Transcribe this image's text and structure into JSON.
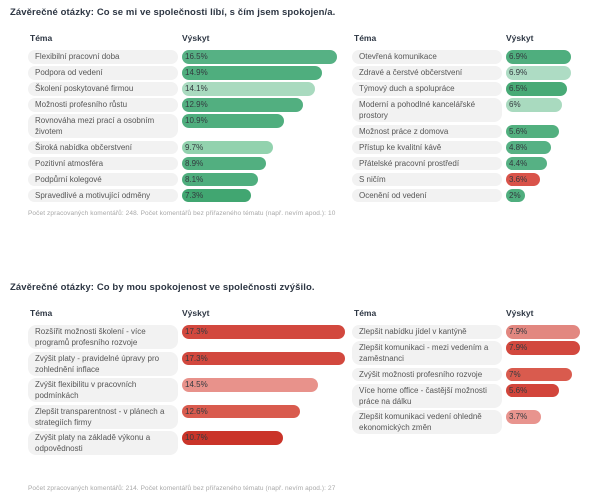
{
  "sections": [
    {
      "title": "Závěrečné otázky: Co se mi ve společnosti líbí, s čím jsem spokojen/a.",
      "footnote": "Počet zpracovaných komentářů: 248. Počet komentářů bez přiřazeného tématu (např. nevím apod.): 10"
    },
    {
      "title": "Závěrečné otázky: Co by mou spokojenost ve společnosti zvýšilo.",
      "footnote": "Počet zpracovaných komentářů: 214. Počet komentářů bez přiřazeného tématu (např. nevím apod.): 27"
    }
  ],
  "chart_data": [
    {
      "type": "bar",
      "orientation": "horizontal",
      "col_topic": "Téma",
      "col_value": "Výskyt",
      "categories": [
        "Flexibilní pracovní doba",
        "Podpora od vedení",
        "Školení poskytované firmou",
        "Možnosti profesního růstu",
        "Rovnováha mezi prací a osobním životem",
        "Široká nabídka občerstvení",
        "Pozitivní atmosféra",
        "Podpůrní kolegové",
        "Spravedlivé a motivující odměny"
      ],
      "values": [
        16.5,
        14.9,
        14.1,
        12.9,
        10.9,
        9.7,
        8.9,
        8.1,
        7.3
      ],
      "labels": [
        "16.5%",
        "14.9%",
        "14.1%",
        "12.9%",
        "10.9%",
        "9.7%",
        "8.9%",
        "8.1%",
        "7.3%"
      ],
      "colors": [
        "#56b184",
        "#4fae7e",
        "#a9dabf",
        "#52af80",
        "#4fae7e",
        "#92d2ae",
        "#52af80",
        "#4fae7e",
        "#41a671"
      ]
    },
    {
      "type": "bar",
      "orientation": "horizontal",
      "col_topic": "Téma",
      "col_value": "Výskyt",
      "categories": [
        "Otevřená komunikace",
        "Zdravé a čerstvé občerstvení",
        "Týmový duch a spolupráce",
        "Moderní a pohodlné kancelářské prostory",
        "Možnost práce z domova",
        "Přístup ke kvalitní kávě",
        "Přátelské pracovní prostředí",
        "S ničím",
        "Ocenění od vedení"
      ],
      "values": [
        6.9,
        6.9,
        6.5,
        6,
        5.6,
        4.8,
        4.4,
        3.6,
        2
      ],
      "labels": [
        "6.9%",
        "6.9%",
        "6.5%",
        "6%",
        "5.6%",
        "4.8%",
        "4.4%",
        "3.6%",
        "2%"
      ],
      "colors": [
        "#4fae7e",
        "#aedcc4",
        "#48aa76",
        "#a9dabf",
        "#52b07f",
        "#56b184",
        "#56b184",
        "#d9534a",
        "#4fae7e"
      ]
    },
    {
      "type": "bar",
      "orientation": "horizontal",
      "col_topic": "Téma",
      "col_value": "Výskyt",
      "categories": [
        "Rozšířit možnosti školení - více programů profesního rozvoje",
        "Zvýšit platy - pravidelné úpravy pro zohlednění inflace",
        "Zvýšit flexibilitu v pracovních podmínkách",
        "Zlepšit transparentnost - v plánech a strategiích firmy",
        "Zvýšit platy na základě výkonu a odpovědnosti"
      ],
      "values": [
        17.3,
        17.3,
        14.5,
        12.6,
        10.7
      ],
      "labels": [
        "17.3%",
        "17.3%",
        "14.5%",
        "12.6%",
        "10.7%"
      ],
      "colors": [
        "#d2483e",
        "#d2483e",
        "#e8928b",
        "#d95b4e",
        "#ca3429"
      ]
    },
    {
      "type": "bar",
      "orientation": "horizontal",
      "col_topic": "Téma",
      "col_value": "Výskyt",
      "categories": [
        "Zlepšit nabídku jídel v kantýně",
        "Zlepšit komunikaci - mezi vedením a zaměstnanci",
        "Zvýšit možnosti profesního rozvoje",
        "Více home office - častější možnosti práce na dálku",
        "Zlepšit komunikaci vedení ohledně ekonomických změn"
      ],
      "values": [
        7.9,
        7.9,
        7,
        5.6,
        3.7
      ],
      "labels": [
        "7.9%",
        "7.9%",
        "7%",
        "5.6%",
        "3.7%"
      ],
      "colors": [
        "#e28780",
        "#d2483e",
        "#d95b4e",
        "#d2453b",
        "#e8948e"
      ]
    }
  ]
}
